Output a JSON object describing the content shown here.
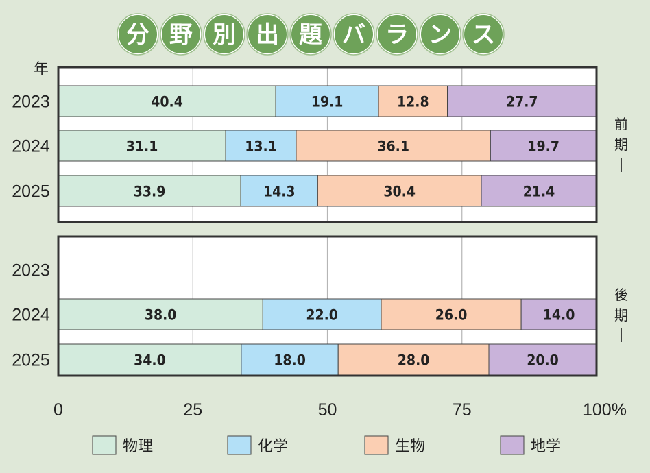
{
  "chart_data": {
    "type": "bar",
    "orientation": "horizontal",
    "stacked": true,
    "title": "分野別出題バランス",
    "year_header": "年",
    "xlim": [
      0,
      100
    ],
    "xticks": [
      "0",
      "25",
      "50",
      "75",
      "100%"
    ],
    "grid": true,
    "legend_position": "bottom",
    "series_names": [
      "物理",
      "化学",
      "生物",
      "地学"
    ],
    "colors": {
      "物理": "#d3ebdd",
      "化学": "#b3e0f7",
      "生物": "#fbcfb3",
      "地学": "#c9b3da",
      "title_circle": "#6ea259",
      "background": "#dfe8d8"
    },
    "panels": [
      {
        "label": "前期",
        "rows": [
          {
            "year": "2023",
            "values": [
              40.4,
              19.1,
              12.8,
              27.7
            ]
          },
          {
            "year": "2024",
            "values": [
              31.1,
              13.1,
              36.1,
              19.7
            ]
          },
          {
            "year": "2025",
            "values": [
              33.9,
              14.3,
              30.4,
              21.4
            ]
          }
        ]
      },
      {
        "label": "後期",
        "rows": [
          {
            "year": "2023",
            "values": null
          },
          {
            "year": "2024",
            "values": [
              38.0,
              22.0,
              26.0,
              14.0
            ]
          },
          {
            "year": "2025",
            "values": [
              34.0,
              18.0,
              28.0,
              20.0
            ]
          }
        ]
      }
    ]
  }
}
